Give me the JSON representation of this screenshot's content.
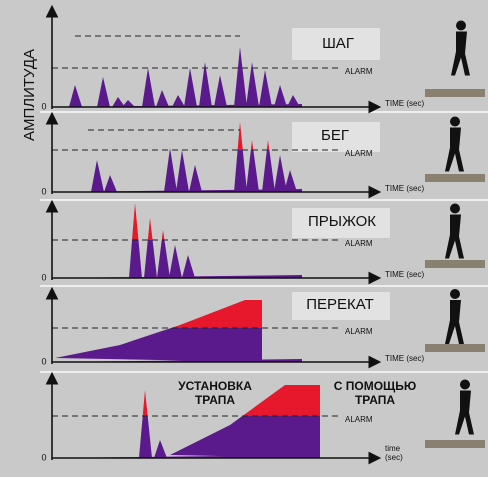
{
  "y_axis_label": "АМПЛИТУДА",
  "panels": [
    {
      "labels": [
        [
          "ШАГ"
        ]
      ],
      "alarm": "ALARM",
      "time_label": [
        "TIME (sec)"
      ],
      "origin": "0"
    },
    {
      "labels": [
        [
          "БЕГ"
        ]
      ],
      "alarm": "ALARM",
      "time_label": [
        "TIME (sec)"
      ],
      "origin": "0"
    },
    {
      "labels": [
        [
          "ПРЫЖОК"
        ]
      ],
      "alarm": "ALARM",
      "time_label": [
        "TIME (sec)"
      ],
      "origin": "0"
    },
    {
      "labels": [
        [
          "ПЕРЕКАТ"
        ]
      ],
      "alarm": "ALARM",
      "time_label": [
        "TIME (sec)"
      ],
      "origin": "0"
    },
    {
      "labels": [
        [
          "УСТАНОВКА",
          "ТРАПА"
        ],
        [
          "С ПОМОЩЬЮ",
          "ТРАПА"
        ]
      ],
      "alarm": "ALARM",
      "time_label": [
        "time",
        "(sec)"
      ],
      "origin": "0"
    }
  ]
}
